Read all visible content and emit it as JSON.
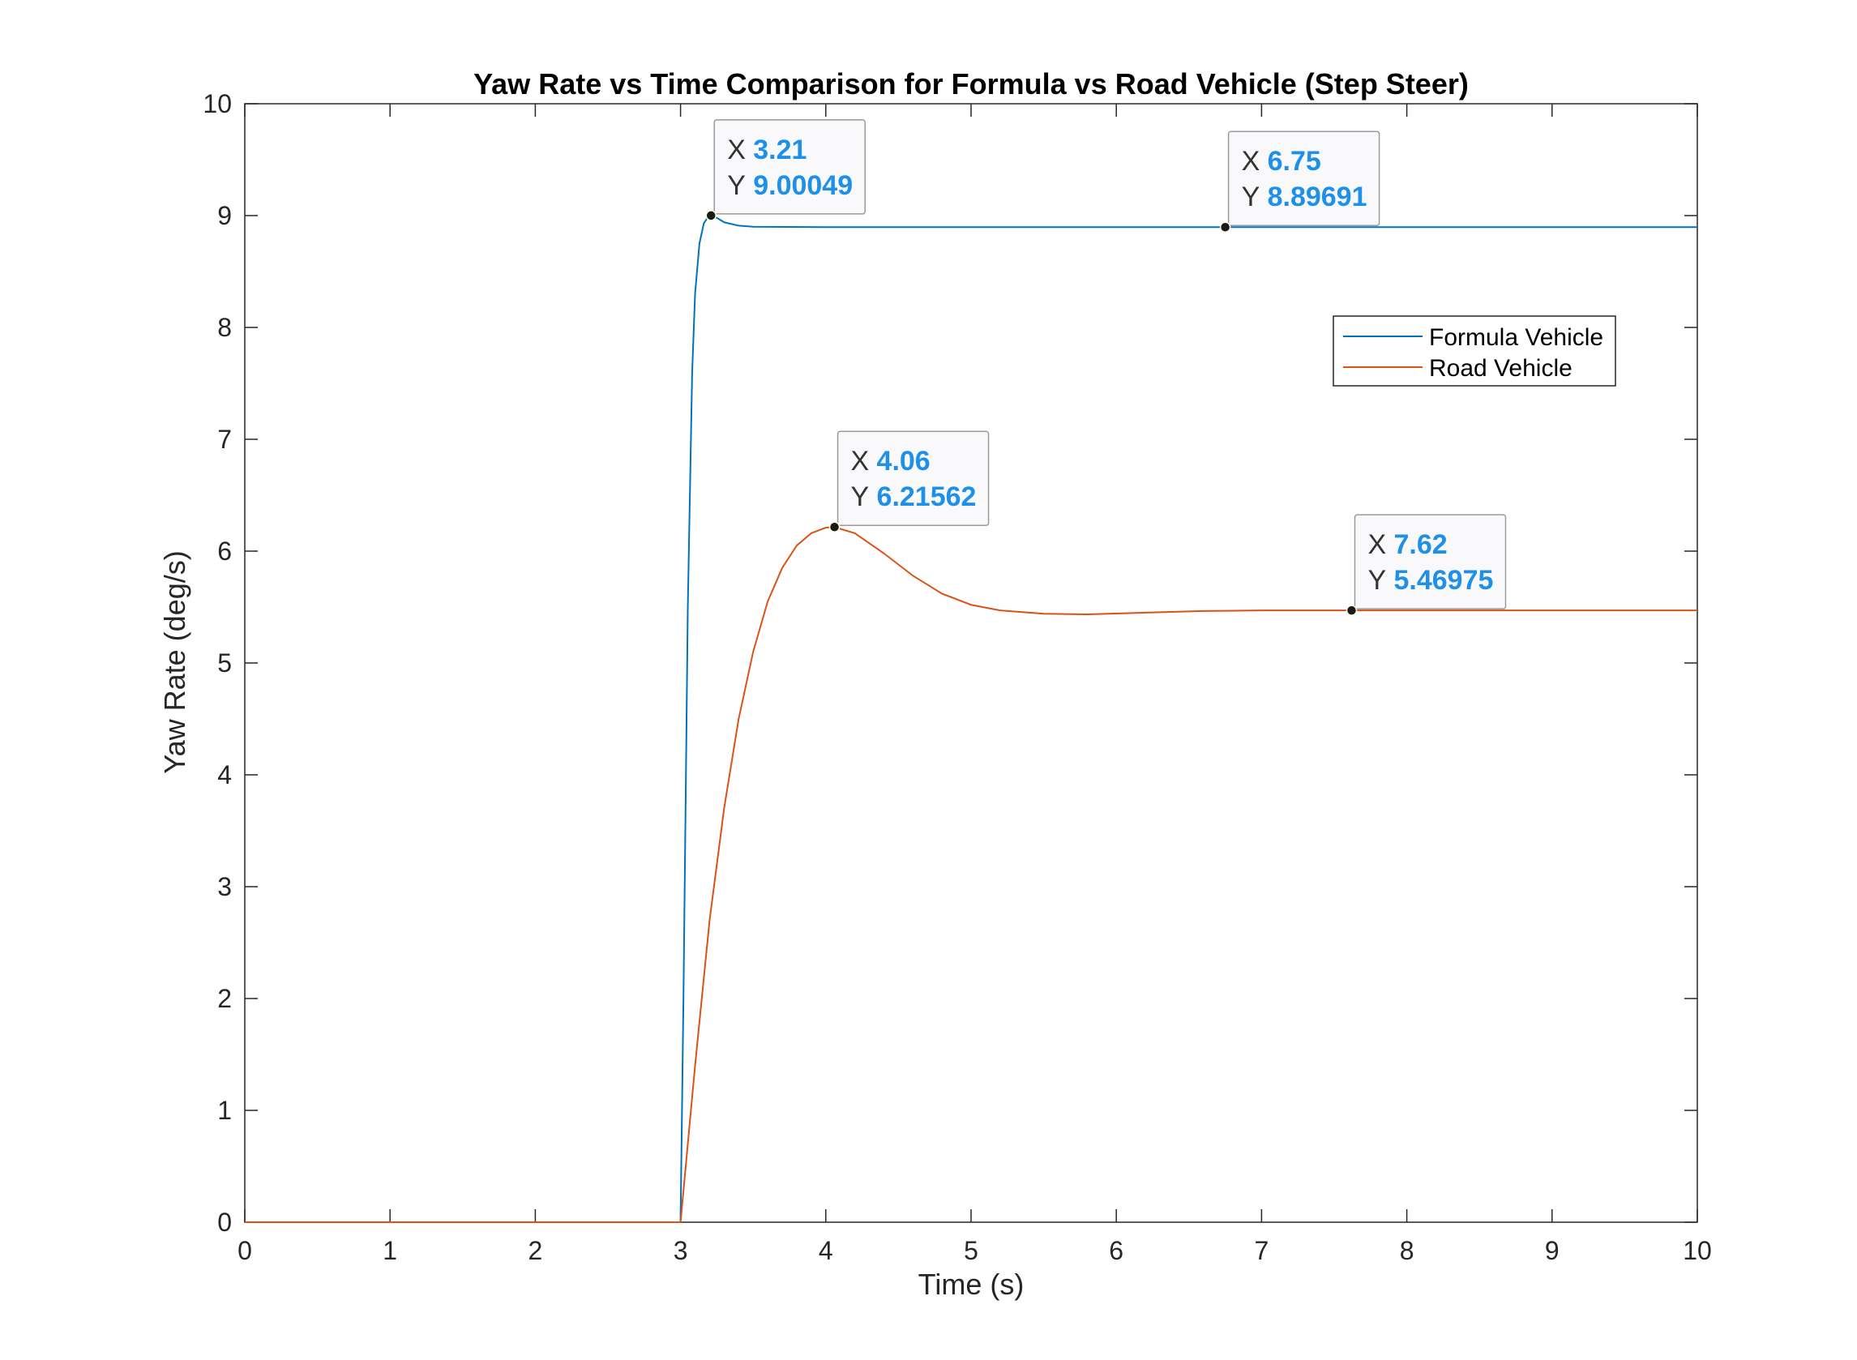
{
  "chart_data": {
    "type": "line",
    "title": "Yaw Rate vs Time Comparison for Formula vs Road Vehicle (Step Steer)",
    "xlabel": "Time (s)",
    "ylabel": "Yaw Rate (deg/s)",
    "xlim": [
      0,
      10
    ],
    "ylim": [
      0,
      10
    ],
    "xticks": [
      "0",
      "1",
      "2",
      "3",
      "4",
      "5",
      "6",
      "7",
      "8",
      "9",
      "10"
    ],
    "yticks": [
      "0",
      "1",
      "2",
      "3",
      "4",
      "5",
      "6",
      "7",
      "8",
      "9",
      "10"
    ],
    "grid": false,
    "legend_position": "top-right",
    "series": [
      {
        "name": "Formula Vehicle",
        "color": "#0072bd",
        "x": [
          0,
          3.0,
          3.02,
          3.05,
          3.08,
          3.1,
          3.13,
          3.16,
          3.19,
          3.21,
          3.25,
          3.3,
          3.4,
          3.5,
          4.0,
          5.0,
          6.0,
          6.75,
          8.0,
          10.0
        ],
        "y": [
          0,
          0,
          2.0,
          5.5,
          7.6,
          8.3,
          8.75,
          8.93,
          8.99,
          9.00049,
          8.98,
          8.94,
          8.91,
          8.9,
          8.897,
          8.897,
          8.897,
          8.89691,
          8.897,
          8.897
        ]
      },
      {
        "name": "Road Vehicle",
        "color": "#d95319",
        "x": [
          0,
          3.0,
          3.1,
          3.2,
          3.3,
          3.4,
          3.5,
          3.6,
          3.7,
          3.8,
          3.9,
          4.0,
          4.06,
          4.2,
          4.4,
          4.6,
          4.8,
          5.0,
          5.2,
          5.5,
          5.8,
          6.2,
          6.6,
          7.0,
          7.62,
          8.5,
          10.0
        ],
        "y": [
          0,
          0,
          1.4,
          2.7,
          3.7,
          4.5,
          5.1,
          5.55,
          5.85,
          6.05,
          6.16,
          6.21,
          6.21562,
          6.16,
          5.98,
          5.78,
          5.62,
          5.52,
          5.47,
          5.44,
          5.435,
          5.45,
          5.465,
          5.47,
          5.46975,
          5.47,
          5.47
        ]
      }
    ],
    "datatips": [
      {
        "x_key": "X",
        "y_key": "Y",
        "x_text": "3.21",
        "y_text": "9.00049",
        "x": 3.21,
        "y": 9.00049
      },
      {
        "x_key": "X",
        "y_key": "Y",
        "x_text": "6.75",
        "y_text": "8.89691",
        "x": 6.75,
        "y": 8.89691
      },
      {
        "x_key": "X",
        "y_key": "Y",
        "x_text": "4.06",
        "y_text": "6.21562",
        "x": 4.06,
        "y": 6.21562
      },
      {
        "x_key": "X",
        "y_key": "Y",
        "x_text": "7.62",
        "y_text": "5.46975",
        "x": 7.62,
        "y": 5.46975
      }
    ]
  }
}
